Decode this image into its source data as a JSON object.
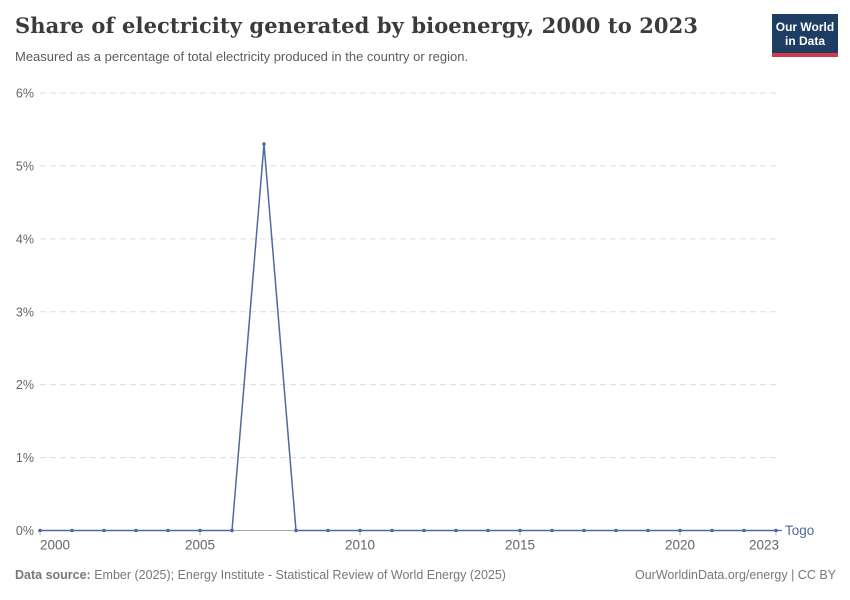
{
  "header": {
    "title": "Share of electricity generated by bioenergy, 2000 to 2023",
    "subtitle": "Measured as a percentage of total electricity produced in the country or region.",
    "logo": {
      "line1": "Our World",
      "line2": "in Data"
    }
  },
  "chart_data": {
    "type": "line",
    "title": "Share of electricity generated by bioenergy, 2000 to 2023",
    "xlabel": "",
    "ylabel": "",
    "xlim": [
      2000,
      2023
    ],
    "ylim": [
      0,
      6
    ],
    "grid": "horizontal-dashed",
    "legend_position": "end-of-line-label",
    "x": [
      2000,
      2001,
      2002,
      2003,
      2004,
      2005,
      2006,
      2007,
      2008,
      2009,
      2010,
      2011,
      2012,
      2013,
      2014,
      2015,
      2016,
      2017,
      2018,
      2019,
      2020,
      2021,
      2022,
      2023
    ],
    "series": [
      {
        "name": "Togo",
        "end_label": "Togo",
        "color": "#4c6a9c",
        "values": [
          0,
          0,
          0,
          0,
          0,
          0,
          0,
          5.3,
          0,
          0,
          0,
          0,
          0,
          0,
          0,
          0,
          0,
          0,
          0,
          0,
          0,
          0,
          0,
          0
        ]
      }
    ],
    "x_ticks": [
      2000,
      2005,
      2010,
      2015,
      2020,
      2023
    ],
    "y_ticks": [
      {
        "value": 0,
        "label": "0%"
      },
      {
        "value": 1,
        "label": "1%"
      },
      {
        "value": 2,
        "label": "2%"
      },
      {
        "value": 3,
        "label": "3%"
      },
      {
        "value": 4,
        "label": "4%"
      },
      {
        "value": 5,
        "label": "5%"
      },
      {
        "value": 6,
        "label": "6%"
      }
    ]
  },
  "colors": {
    "line": "#4c6a9c",
    "grid": "#dcdcdc",
    "zero_axis": "#a9a9a9",
    "tick_label": "#666666",
    "logo_bg": "#1d3d63",
    "logo_bar": "#d13c4c",
    "footer_text": "#787878"
  },
  "footer": {
    "source_label": "Data source:",
    "source_text": "Ember (2025); Energy Institute - Statistical Review of World Energy (2025)",
    "attribution": "OurWorldinData.org/energy | CC BY"
  }
}
